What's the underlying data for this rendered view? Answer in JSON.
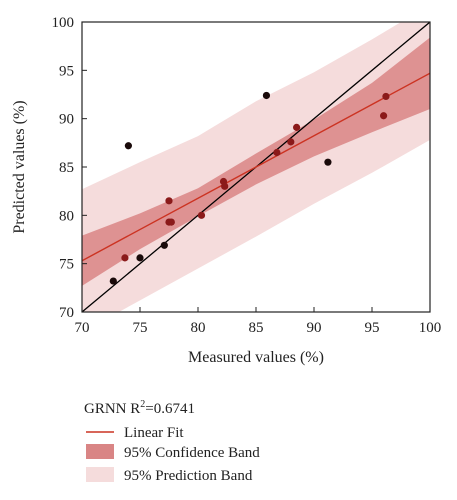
{
  "chart_data": {
    "type": "scatter",
    "xlabel": "Measured values (%)",
    "ylabel": "Predicted values (%)",
    "xlim": [
      70,
      100
    ],
    "ylim": [
      70,
      100
    ],
    "x_ticks": [
      70,
      75,
      80,
      85,
      90,
      95,
      100
    ],
    "y_ticks": [
      70,
      75,
      80,
      85,
      90,
      95,
      100
    ],
    "grid": false,
    "legend_placement": "below",
    "points": [
      {
        "x": 72.7,
        "y": 73.2
      },
      {
        "x": 73.7,
        "y": 75.6
      },
      {
        "x": 74.0,
        "y": 87.2
      },
      {
        "x": 75.0,
        "y": 75.6
      },
      {
        "x": 77.1,
        "y": 76.9
      },
      {
        "x": 77.5,
        "y": 79.3
      },
      {
        "x": 77.7,
        "y": 79.3
      },
      {
        "x": 77.5,
        "y": 81.5
      },
      {
        "x": 80.3,
        "y": 80.0
      },
      {
        "x": 82.2,
        "y": 83.5
      },
      {
        "x": 82.3,
        "y": 83.0
      },
      {
        "x": 85.9,
        "y": 92.4
      },
      {
        "x": 86.8,
        "y": 86.5
      },
      {
        "x": 88.0,
        "y": 87.6
      },
      {
        "x": 88.5,
        "y": 89.1
      },
      {
        "x": 91.2,
        "y": 85.5
      },
      {
        "x": 96.0,
        "y": 90.3
      },
      {
        "x": 96.2,
        "y": 92.3
      }
    ],
    "reference_line": {
      "from": [
        70,
        70
      ],
      "to": [
        100,
        100
      ]
    },
    "linear_fit": {
      "x0": 70,
      "y0": 75.3,
      "x1": 100,
      "y1": 94.7
    },
    "confidence_band": {
      "x": [
        70,
        75,
        80,
        85,
        90,
        95,
        100
      ],
      "lower": [
        72.7,
        76.5,
        79.9,
        83.2,
        86.1,
        88.6,
        91.0
      ],
      "upper": [
        77.9,
        80.2,
        82.8,
        86.4,
        89.9,
        93.7,
        98.4
      ]
    },
    "prediction_band": {
      "x": [
        70,
        75,
        80,
        85,
        90,
        95,
        100
      ],
      "lower": [
        67.9,
        71.2,
        74.5,
        77.8,
        81.2,
        84.4,
        87.8
      ],
      "upper": [
        82.7,
        85.5,
        88.2,
        91.8,
        94.8,
        98.2,
        101.8
      ]
    },
    "colors": {
      "points": "#1a0a0a",
      "point_overlay": "#8b1a1a",
      "fit_line": "#cc3322",
      "confidence_band": "#d98585",
      "prediction_band": "#f5dcdc",
      "reference_line": "#000000"
    },
    "legend": {
      "title": "GRNN R",
      "title_sup": "2",
      "title_value": "=0.6741",
      "items": [
        {
          "label": "Linear Fit",
          "kind": "line"
        },
        {
          "label": "95% Confidence Band",
          "kind": "confidence"
        },
        {
          "label": "95% Prediction Band",
          "kind": "prediction"
        }
      ]
    }
  }
}
